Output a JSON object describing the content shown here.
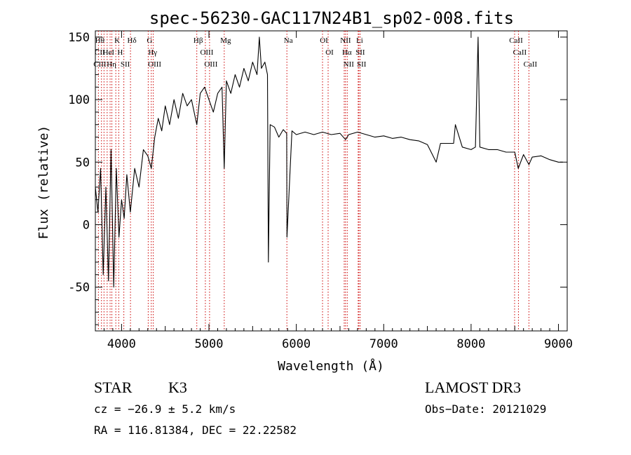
{
  "chart_data": {
    "type": "line",
    "title": "spec-56230-GAC117N24B1_sp02-008.fits",
    "xlabel": "Wavelength (Å)",
    "ylabel": "Flux (relative)",
    "xlim": [
      3700,
      9100
    ],
    "ylim": [
      -85,
      155
    ],
    "xticks": [
      4000,
      5000,
      6000,
      7000,
      8000,
      9000
    ],
    "yticks": [
      -50,
      0,
      50,
      100,
      150
    ],
    "grid": false,
    "line_color": "#000000",
    "marker_color": "#cc0000",
    "series": [
      {
        "x": [
          3700,
          3730,
          3760,
          3790,
          3820,
          3850,
          3880,
          3910,
          3940,
          3970,
          4000,
          4030,
          4060,
          4100,
          4150,
          4200,
          4250,
          4300,
          4340,
          4380,
          4420,
          4460,
          4500,
          4550,
          4600,
          4650,
          4700,
          4750,
          4800,
          4861,
          4900,
          4950,
          5000,
          5050,
          5100,
          5150,
          5175,
          5200,
          5250,
          5300,
          5350,
          5400,
          5450,
          5500,
          5550,
          5577,
          5600,
          5640,
          5670,
          5680,
          5700,
          5750,
          5800,
          5850,
          5890,
          5893,
          5950,
          6000,
          6100,
          6200,
          6300,
          6400,
          6500,
          6563,
          6600,
          6700,
          6800,
          6900,
          7000,
          7100,
          7200,
          7300,
          7400,
          7500,
          7600,
          7650,
          7700,
          7800,
          7820,
          7900,
          8000,
          8050,
          8080,
          8100,
          8200,
          8300,
          8400,
          8500,
          8540,
          8600,
          8662,
          8700,
          8800,
          8900,
          9000,
          9050
        ],
        "y": [
          30,
          10,
          45,
          -40,
          30,
          -45,
          60,
          -50,
          45,
          -10,
          20,
          5,
          40,
          10,
          45,
          30,
          60,
          55,
          45,
          70,
          85,
          75,
          95,
          80,
          100,
          85,
          105,
          95,
          100,
          80,
          105,
          110,
          100,
          90,
          105,
          110,
          45,
          115,
          105,
          120,
          110,
          125,
          115,
          130,
          120,
          150,
          125,
          130,
          120,
          -30,
          80,
          78,
          70,
          76,
          73,
          -10,
          75,
          72,
          74,
          72,
          74,
          72,
          73,
          68,
          72,
          74,
          72,
          70,
          71,
          69,
          70,
          68,
          67,
          64,
          50,
          65,
          65,
          65,
          80,
          62,
          60,
          62,
          150,
          62,
          60,
          60,
          58,
          58,
          45,
          56,
          48,
          54,
          55,
          52,
          50,
          50
        ]
      }
    ],
    "lines": [
      {
        "x": 3735,
        "labels": [
          "Hθ",
          "CII",
          "CIII"
        ]
      },
      {
        "x": 3770,
        "labels": []
      },
      {
        "x": 3799,
        "labels": []
      },
      {
        "x": 3835,
        "labels": [
          "HeI"
        ]
      },
      {
        "x": 3869,
        "labels": [
          "Hη"
        ]
      },
      {
        "x": 3889,
        "labels": []
      },
      {
        "x": 3934,
        "labels": [
          "K"
        ]
      },
      {
        "x": 3968,
        "labels": [
          "H"
        ]
      },
      {
        "x": 4026,
        "labels": [
          "SII"
        ]
      },
      {
        "x": 4102,
        "labels": [
          "Hδ"
        ]
      },
      {
        "x": 4305,
        "labels": [
          "G"
        ]
      },
      {
        "x": 4340,
        "labels": [
          "Hγ"
        ]
      },
      {
        "x": 4363,
        "labels": [
          "OIII"
        ]
      },
      {
        "x": 4861,
        "labels": [
          "Hβ"
        ]
      },
      {
        "x": 4959,
        "labels": [
          "OIII"
        ]
      },
      {
        "x": 5007,
        "labels": [
          "OIII"
        ]
      },
      {
        "x": 5175,
        "labels": [
          "Mg"
        ]
      },
      {
        "x": 5892,
        "labels": [
          "Na"
        ]
      },
      {
        "x": 6300,
        "labels": [
          "OI"
        ]
      },
      {
        "x": 6364,
        "labels": [
          "OI"
        ]
      },
      {
        "x": 6548,
        "labels": [
          "NII"
        ]
      },
      {
        "x": 6563,
        "labels": [
          "Hα"
        ]
      },
      {
        "x": 6583,
        "labels": [
          "NII"
        ]
      },
      {
        "x": 6708,
        "labels": [
          "Li"
        ]
      },
      {
        "x": 6716,
        "labels": [
          "SII"
        ]
      },
      {
        "x": 6731,
        "labels": [
          "SII"
        ]
      },
      {
        "x": 8498,
        "labels": [
          "CaII"
        ]
      },
      {
        "x": 8542,
        "labels": [
          "CaII"
        ]
      },
      {
        "x": 8662,
        "labels": [
          "CaII"
        ]
      }
    ]
  },
  "info": {
    "class": "STAR",
    "subclass": "K3",
    "survey": "LAMOST DR3",
    "cz": "cz = −26.9 ± 5.2 km/s",
    "obs_date": "Obs−Date: 20121029",
    "coords": "RA = 116.81384, DEC =  22.22582"
  }
}
